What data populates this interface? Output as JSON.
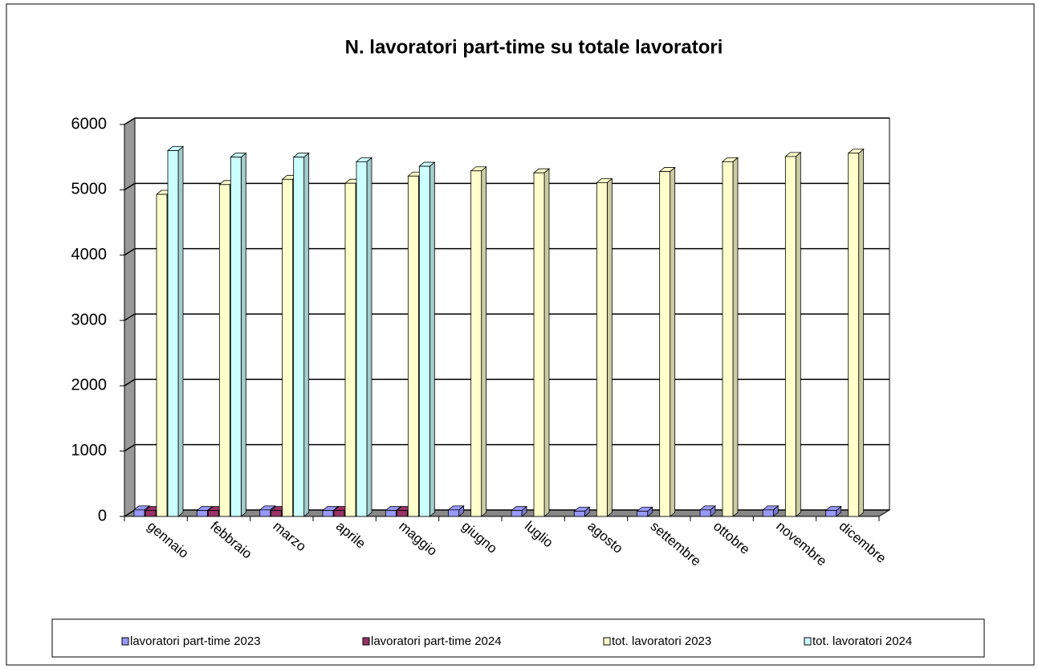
{
  "chart_data": {
    "type": "bar3d",
    "title": "N. lavoratori part-time su totale lavoratori",
    "categories": [
      "gennaio",
      "febbraio",
      "marzo",
      "aprile",
      "maggio",
      "giugno",
      "luglio",
      "agosto",
      "settembre",
      "ottobre",
      "novembre",
      "dicembre"
    ],
    "series": [
      {
        "name": "lavoratori part-time 2023",
        "color": "#9999ff",
        "values": [
          100,
          90,
          100,
          90,
          90,
          100,
          90,
          80,
          80,
          100,
          100,
          90
        ]
      },
      {
        "name": "lavoratori part-time 2024",
        "color": "#993366",
        "values": [
          90,
          90,
          90,
          90,
          90,
          null,
          null,
          null,
          null,
          null,
          null,
          null
        ]
      },
      {
        "name": "tot. lavoratori 2023",
        "color": "#ffffcc",
        "values": [
          4930,
          5080,
          5160,
          5100,
          5210,
          5290,
          5260,
          5110,
          5280,
          5430,
          5510,
          5560
        ]
      },
      {
        "name": "tot. lavoratori 2024",
        "color": "#ccffff",
        "values": [
          5600,
          5500,
          5500,
          5430,
          5360,
          null,
          null,
          null,
          null,
          null,
          null,
          null
        ]
      }
    ],
    "ylim": [
      0,
      6000
    ],
    "yticks": [
      0,
      1000,
      2000,
      3000,
      4000,
      5000,
      6000
    ],
    "grid": true,
    "legend": "bottom"
  }
}
